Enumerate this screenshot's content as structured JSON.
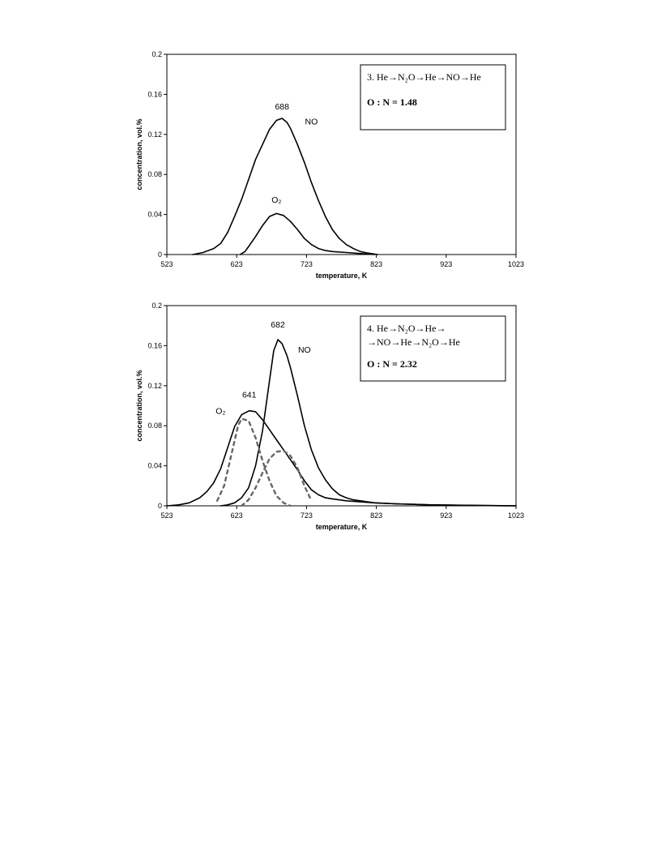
{
  "chart_data": [
    {
      "type": "line",
      "xlabel": "temperature, K",
      "ylabel": "concentration, vol.%",
      "xlim": [
        523,
        1023
      ],
      "ylim": [
        0,
        0.2
      ],
      "x_ticks": [
        "523",
        "623",
        "723",
        "823",
        "923",
        "1023"
      ],
      "y_ticks": [
        "0",
        "0.04",
        "0.08",
        "0.12",
        "0.16",
        "0.2"
      ],
      "grid": false,
      "legend_box": {
        "line1": "3. He→N₂O→He→NO→He",
        "line2": "",
        "ratio": "O : N = 1.48"
      },
      "annotations": [
        {
          "text": "688",
          "x": 688,
          "y": 0.145
        },
        {
          "text": "NO",
          "x": 730,
          "y": 0.13
        },
        {
          "text": "O₂",
          "x": 680,
          "y": 0.052
        }
      ],
      "series": [
        {
          "label": "NO",
          "style": "solid",
          "x": [
            560,
            575,
            590,
            600,
            610,
            620,
            630,
            640,
            650,
            660,
            670,
            680,
            688,
            695,
            700,
            710,
            720,
            730,
            740,
            750,
            760,
            770,
            780,
            790,
            800,
            810,
            820,
            825
          ],
          "y": [
            0,
            0.002,
            0.006,
            0.011,
            0.022,
            0.038,
            0.055,
            0.075,
            0.095,
            0.11,
            0.125,
            0.134,
            0.136,
            0.132,
            0.126,
            0.11,
            0.092,
            0.072,
            0.054,
            0.038,
            0.025,
            0.016,
            0.01,
            0.006,
            0.003,
            0.0015,
            0.0005,
            0
          ]
        },
        {
          "label": "O₂",
          "style": "solid",
          "x": [
            628,
            635,
            640,
            650,
            660,
            670,
            680,
            690,
            700,
            710,
            720,
            730,
            740,
            750,
            760,
            780,
            800,
            820
          ],
          "y": [
            0,
            0.003,
            0.008,
            0.018,
            0.029,
            0.038,
            0.041,
            0.039,
            0.033,
            0.025,
            0.016,
            0.01,
            0.006,
            0.004,
            0.003,
            0.002,
            0.001,
            0
          ]
        }
      ]
    },
    {
      "type": "line",
      "xlabel": "temperature, K",
      "ylabel": "concentration, vol.%",
      "xlim": [
        523,
        1023
      ],
      "ylim": [
        0,
        0.2
      ],
      "x_ticks": [
        "523",
        "623",
        "723",
        "823",
        "923",
        "1023"
      ],
      "y_ticks": [
        "0",
        "0.04",
        "0.08",
        "0.12",
        "0.16",
        "0.2"
      ],
      "grid": false,
      "legend_box": {
        "line1": "4. He→N₂O→He→",
        "line2": "→NO→He→N₂O→He",
        "ratio": "O : N = 2.32"
      },
      "annotations": [
        {
          "text": "682",
          "x": 682,
          "y": 0.178
        },
        {
          "text": "NO",
          "x": 720,
          "y": 0.153
        },
        {
          "text": "641",
          "x": 641,
          "y": 0.108
        },
        {
          "text": "O₂",
          "x": 600,
          "y": 0.092
        }
      ],
      "series": [
        {
          "label": "NO",
          "style": "solid",
          "x": [
            600,
            610,
            620,
            630,
            640,
            650,
            660,
            670,
            676,
            682,
            688,
            695,
            700,
            710,
            720,
            730,
            740,
            750,
            760,
            770,
            780,
            790,
            800,
            820,
            850,
            900,
            950,
            1000,
            1023
          ],
          "y": [
            0,
            0.001,
            0.003,
            0.008,
            0.018,
            0.04,
            0.075,
            0.125,
            0.155,
            0.166,
            0.162,
            0.15,
            0.138,
            0.11,
            0.08,
            0.056,
            0.038,
            0.026,
            0.017,
            0.011,
            0.008,
            0.006,
            0.005,
            0.003,
            0.002,
            0.001,
            0.0006,
            0.0002,
            0
          ]
        },
        {
          "label": "O₂",
          "style": "solid",
          "x": [
            523,
            540,
            555,
            570,
            580,
            590,
            600,
            610,
            620,
            630,
            641,
            650,
            660,
            670,
            680,
            690,
            700,
            710,
            720,
            730,
            740,
            750,
            760,
            780,
            800,
            820,
            850,
            900,
            950,
            1000,
            1023
          ],
          "y": [
            0,
            0.001,
            0.003,
            0.008,
            0.014,
            0.023,
            0.037,
            0.058,
            0.079,
            0.091,
            0.095,
            0.094,
            0.086,
            0.076,
            0.066,
            0.056,
            0.046,
            0.036,
            0.025,
            0.016,
            0.011,
            0.008,
            0.007,
            0.005,
            0.004,
            0.003,
            0.002,
            0.001,
            0.0005,
            0.0002,
            0
          ]
        },
        {
          "label": "O₂ component 1",
          "style": "dashed",
          "x": [
            595,
            605,
            615,
            625,
            630,
            640,
            650,
            660,
            670,
            680,
            690,
            700
          ],
          "y": [
            0.005,
            0.02,
            0.05,
            0.08,
            0.087,
            0.085,
            0.068,
            0.045,
            0.025,
            0.01,
            0.003,
            0
          ]
        },
        {
          "label": "O₂ component 2",
          "style": "dashed",
          "x": [
            630,
            640,
            650,
            660,
            670,
            680,
            690,
            700,
            710,
            720,
            730
          ],
          "y": [
            0,
            0.006,
            0.018,
            0.033,
            0.047,
            0.054,
            0.055,
            0.05,
            0.038,
            0.02,
            0.005
          ]
        }
      ]
    }
  ]
}
